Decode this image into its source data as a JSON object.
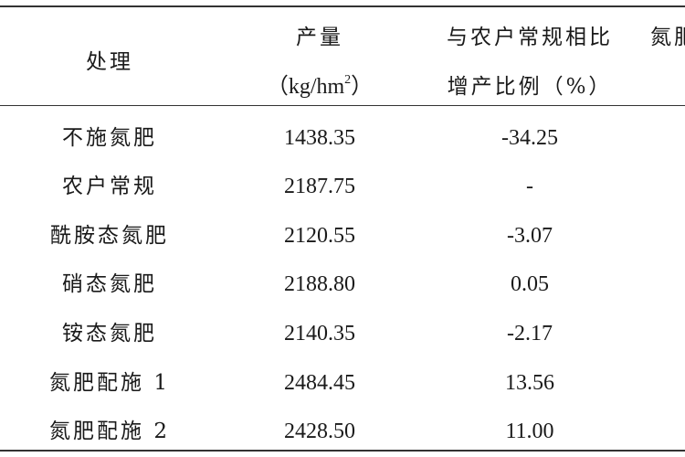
{
  "header": {
    "treatment": "处理",
    "yield_line1": "产量",
    "yield_unit_pre": "（kg/hm",
    "yield_unit_sup": "2",
    "yield_unit_post": "）",
    "ratio_line1": "与农户常规相比",
    "ratio_line2": "增产比例（%）",
    "extra_partial": "氮肥"
  },
  "rows": [
    {
      "treatment": "不施氮肥",
      "yield": "1438.35",
      "ratio": "-34.25"
    },
    {
      "treatment": "农户常规",
      "yield": "2187.75",
      "ratio": "-"
    },
    {
      "treatment": "酰胺态氮肥",
      "yield": "2120.55",
      "ratio": "-3.07"
    },
    {
      "treatment": "硝态氮肥",
      "yield": "2188.80",
      "ratio": "0.05"
    },
    {
      "treatment": "铵态氮肥",
      "yield": "2140.35",
      "ratio": "-2.17"
    },
    {
      "treatment": "氮肥配施 1",
      "yield": "2484.45",
      "ratio": "13.56"
    },
    {
      "treatment": "氮肥配施 2",
      "yield": "2428.50",
      "ratio": "11.00"
    }
  ]
}
